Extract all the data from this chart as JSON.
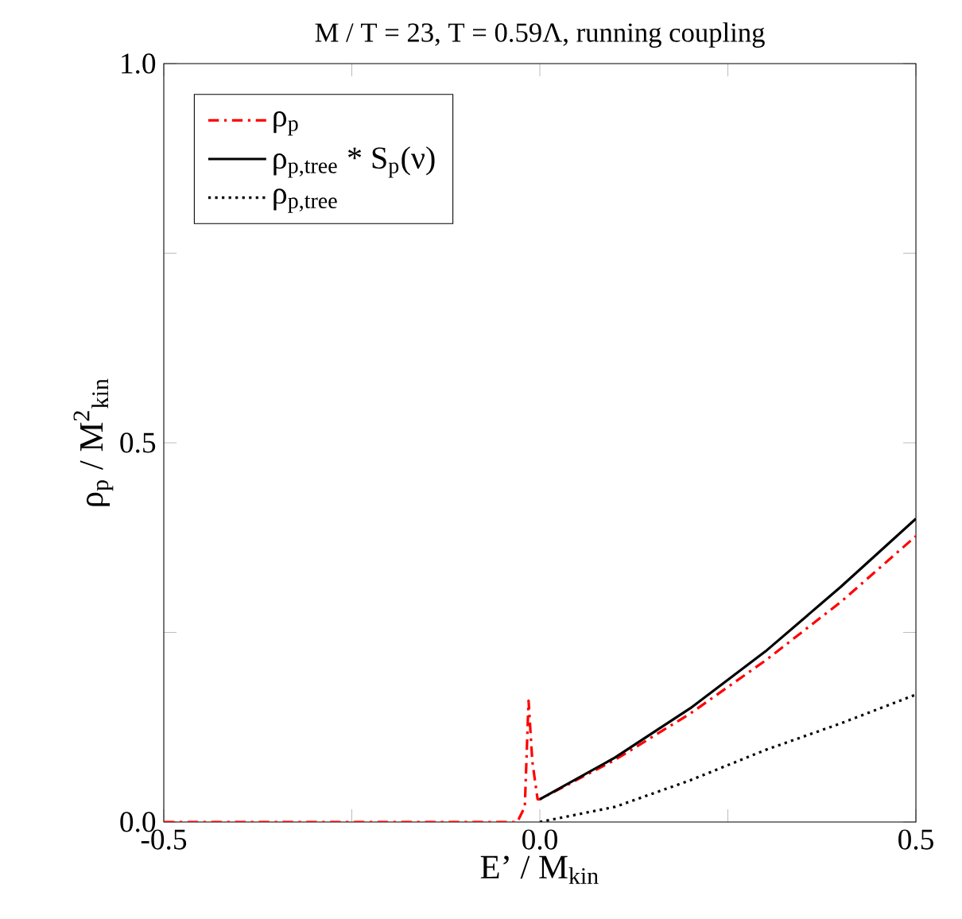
{
  "chart_data": {
    "type": "line",
    "title": "M / T = 23, T = 0.59Λ, running coupling",
    "xlabel": "E’ / M$_{kin}$",
    "ylabel": "ρ$_{p}$ / M$^{2}$$_{kin}$",
    "xlim": [
      -0.5,
      0.5
    ],
    "ylim": [
      0,
      1
    ],
    "xticks": [
      {
        "value": -0.5,
        "label": "-0.5"
      },
      {
        "value": -0.25,
        "label": null
      },
      {
        "value": 0,
        "label": "0.0"
      },
      {
        "value": 0.25,
        "label": null
      },
      {
        "value": 0.5,
        "label": "0.5"
      }
    ],
    "yticks": [
      {
        "value": 0,
        "label": "0.0"
      },
      {
        "value": 0.25,
        "label": null
      },
      {
        "value": 0.5,
        "label": "0.5"
      },
      {
        "value": 0.75,
        "label": null
      },
      {
        "value": 1,
        "label": "1.0"
      }
    ],
    "legend": "top left",
    "grid": false,
    "series": [
      {
        "name": "ρ$_{p}$",
        "color": "#ff0000",
        "line_style": "dashdot",
        "x": [
          -0.5,
          -0.03,
          -0.02,
          -0.015,
          -0.01,
          -0.003,
          0,
          0.1,
          0.2,
          0.3,
          0.4,
          0.5
        ],
        "values": [
          0,
          0,
          0.02,
          0.16,
          0.08,
          0.03,
          0.03,
          0.082,
          0.143,
          0.213,
          0.29,
          0.377
        ]
      },
      {
        "name": "ρ$_{p,tree}$ * S$_{p}$(ν)",
        "color": "#000000",
        "line_style": "solid",
        "x": [
          0,
          0.1,
          0.2,
          0.3,
          0.4,
          0.5
        ],
        "values": [
          0.03,
          0.085,
          0.15,
          0.225,
          0.31,
          0.4
        ]
      },
      {
        "name": "ρ$_{p,tree}$",
        "color": "#000000",
        "line_style": "dotted",
        "x": [
          0,
          0.1,
          0.2,
          0.3,
          0.4,
          0.5
        ],
        "values": [
          0,
          0.02,
          0.055,
          0.095,
          0.13,
          0.168
        ]
      }
    ]
  }
}
